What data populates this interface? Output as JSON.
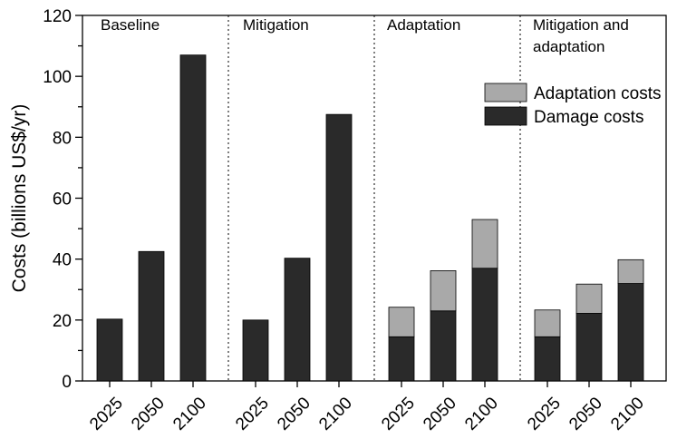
{
  "chart_data": {
    "type": "bar",
    "stacked": true,
    "title": "",
    "xlabel": "",
    "ylabel": "Costs (billions US$/yr)",
    "ylim": [
      0,
      120
    ],
    "yticks": [
      0,
      20,
      40,
      60,
      80,
      100,
      120
    ],
    "grid": false,
    "legend_position": "top-right",
    "groups": [
      {
        "label": "Baseline",
        "categories": [
          "2025",
          "2050",
          "2100"
        ]
      },
      {
        "label": "Mitigation",
        "categories": [
          "2025",
          "2050",
          "2100"
        ]
      },
      {
        "label": "Adaptation",
        "categories": [
          "2025",
          "2050",
          "2100"
        ]
      },
      {
        "label": "Mitigation and\nadaptation",
        "categories": [
          "2025",
          "2050",
          "2100"
        ]
      }
    ],
    "series": [
      {
        "name": "Damage costs",
        "color": "#2a2a2a",
        "values": [
          20.3,
          42.5,
          107,
          20,
          40.3,
          87.5,
          14.5,
          23,
          37,
          14.5,
          22.2,
          32
        ]
      },
      {
        "name": "Adaptation costs",
        "color": "#a9a9a9",
        "values": [
          0,
          0,
          0,
          0,
          0,
          0,
          9.7,
          13.2,
          16,
          8.8,
          9.6,
          7.8
        ]
      }
    ],
    "legend_order": [
      "Adaptation costs",
      "Damage costs"
    ]
  }
}
